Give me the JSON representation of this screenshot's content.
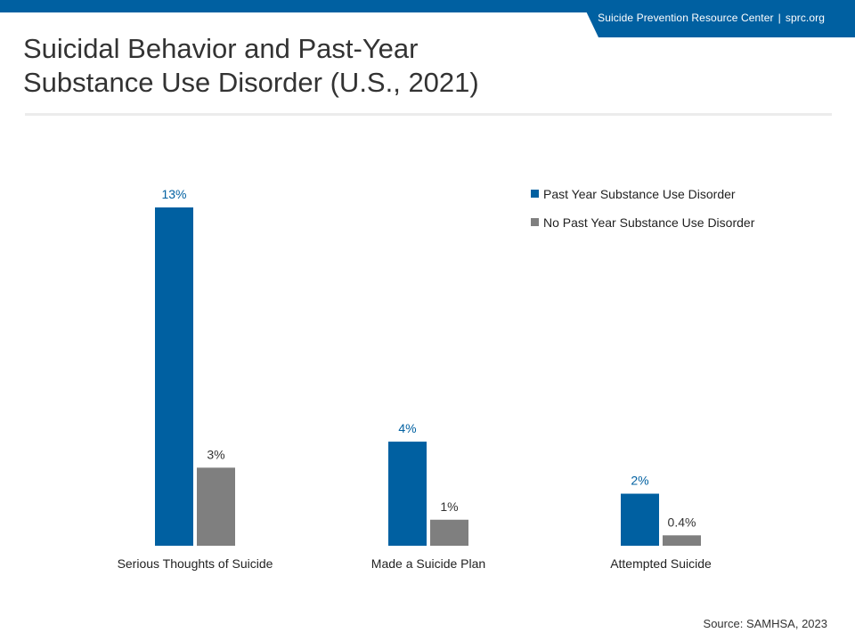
{
  "header": {
    "org_name": "Suicide Prevention Resource Center",
    "org_separator": "|",
    "org_site": "sprc.org"
  },
  "title_lines": [
    "Suicidal Behavior and Past-Year",
    "Substance Use Disorder (U.S., 2021)"
  ],
  "source": "Source: SAMHSA, 2023",
  "colors": {
    "accent": "#0060a1",
    "secondary": "#7f7f7f",
    "text": "#333333"
  },
  "chart_data": {
    "type": "bar",
    "categories": [
      "Serious Thoughts of Suicide",
      "Made a Suicide Plan",
      "Attempted Suicide"
    ],
    "series": [
      {
        "name": "Past Year Substance Use Disorder",
        "values": [
          13,
          4,
          2
        ],
        "labels": [
          "13%",
          "4%",
          "2%"
        ],
        "color": "#0060a1"
      },
      {
        "name": "No Past Year Substance Use Disorder",
        "values": [
          3,
          1,
          0.4
        ],
        "labels": [
          "3%",
          "1%",
          "0.4%"
        ],
        "color": "#7f7f7f"
      }
    ],
    "title": "Suicidal Behavior and Past-Year Substance Use Disorder (U.S., 2021)",
    "xlabel": "",
    "ylabel": "",
    "ylim": [
      0,
      13
    ],
    "grid": false,
    "legend_position": "top-right"
  }
}
